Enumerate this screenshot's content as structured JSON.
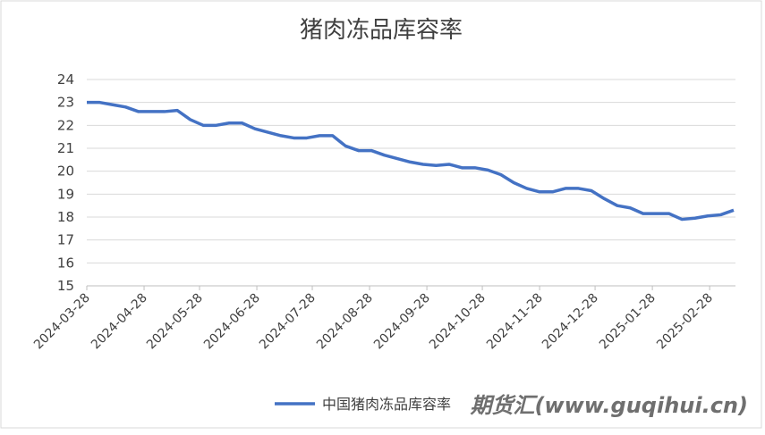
{
  "chart_data": {
    "type": "line",
    "title": "猪肉冻品库容率",
    "x": [
      "2024-03-28",
      "2024-04-04",
      "2024-04-11",
      "2024-04-18",
      "2024-04-25",
      "2024-05-02",
      "2024-05-09",
      "2024-05-16",
      "2024-05-23",
      "2024-05-30",
      "2024-06-06",
      "2024-06-13",
      "2024-06-20",
      "2024-06-27",
      "2024-07-04",
      "2024-07-11",
      "2024-07-18",
      "2024-07-25",
      "2024-08-01",
      "2024-08-08",
      "2024-08-15",
      "2024-08-22",
      "2024-08-29",
      "2024-09-05",
      "2024-09-12",
      "2024-09-19",
      "2024-09-26",
      "2024-10-03",
      "2024-10-10",
      "2024-10-17",
      "2024-10-24",
      "2024-10-31",
      "2024-11-07",
      "2024-11-14",
      "2024-11-21",
      "2024-11-28",
      "2024-12-05",
      "2024-12-12",
      "2024-12-19",
      "2024-12-26",
      "2025-01-02",
      "2025-01-09",
      "2025-01-16",
      "2025-01-23",
      "2025-01-30",
      "2025-02-06",
      "2025-02-13",
      "2025-02-20",
      "2025-02-27",
      "2025-03-06",
      "2025-03-13"
    ],
    "series": [
      {
        "name": "中国猪肉冻品库容率",
        "color": "#4472c4",
        "values": [
          23.0,
          23.0,
          22.9,
          22.8,
          22.6,
          22.6,
          22.6,
          22.65,
          22.25,
          22.0,
          22.0,
          22.1,
          22.1,
          21.85,
          21.7,
          21.55,
          21.45,
          21.45,
          21.55,
          21.55,
          21.1,
          20.9,
          20.9,
          20.7,
          20.55,
          20.4,
          20.3,
          20.25,
          20.3,
          20.15,
          20.15,
          20.05,
          19.85,
          19.5,
          19.25,
          19.1,
          19.1,
          19.25,
          19.25,
          19.15,
          18.8,
          18.5,
          18.4,
          18.15,
          18.15,
          18.15,
          17.9,
          17.95,
          18.05,
          18.1,
          18.3
        ]
      }
    ],
    "xlim": [
      "2024-03-28",
      "2025-03-13"
    ],
    "xticks": [
      "2024-03-28",
      "2024-04-28",
      "2024-05-28",
      "2024-06-28",
      "2024-07-28",
      "2024-08-28",
      "2024-09-28",
      "2024-10-28",
      "2024-11-28",
      "2024-12-28",
      "2025-01-28",
      "2025-02-28"
    ],
    "ylim": [
      15,
      24
    ],
    "yticks": [
      15,
      16,
      17,
      18,
      19,
      20,
      21,
      22,
      23,
      24
    ],
    "grid": true,
    "legend": "bottom",
    "watermark": "期货汇(www.guqihui.cn)"
  }
}
